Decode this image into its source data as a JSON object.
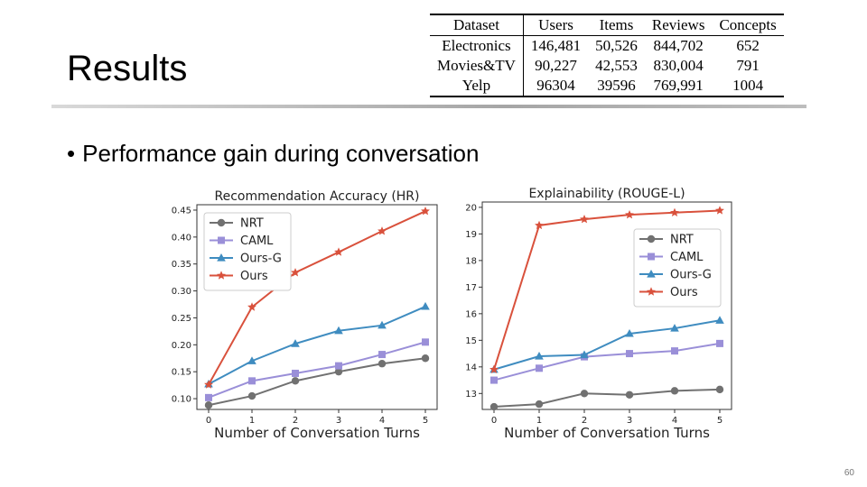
{
  "slide": {
    "title": "Results",
    "bullet_marker": "•",
    "bullet": "Performance gain during conversation",
    "page_number": "60"
  },
  "dataset_table": {
    "headers": [
      "Dataset",
      "Users",
      "Items",
      "Reviews",
      "Concepts"
    ],
    "rows": [
      [
        "Electronics",
        "146,481",
        "50,526",
        "844,702",
        "652"
      ],
      [
        "Movies&TV",
        "90,227",
        "42,553",
        "830,004",
        "791"
      ],
      [
        "Yelp",
        "96304",
        "39596",
        "769,991",
        "1004"
      ]
    ]
  },
  "colors": {
    "NRT": "#717171",
    "CAML": "#9a8fd8",
    "Ours-G": "#3f8cc0",
    "Ours": "#d9513c"
  },
  "chart_data": [
    {
      "type": "line",
      "title": "Recommendation Accuracy (HR)",
      "xlabel": "Number of Conversation Turns",
      "ylabel": "",
      "x": [
        0,
        1,
        2,
        3,
        4,
        5
      ],
      "ylim": [
        0.08,
        0.46
      ],
      "yticks": [
        0.1,
        0.15,
        0.2,
        0.25,
        0.3,
        0.35,
        0.4,
        0.45
      ],
      "legend_position": "top-left",
      "series": [
        {
          "name": "NRT",
          "marker": "circle",
          "values": [
            0.088,
            0.105,
            0.133,
            0.15,
            0.165,
            0.175
          ]
        },
        {
          "name": "CAML",
          "marker": "square",
          "values": [
            0.102,
            0.133,
            0.147,
            0.161,
            0.182,
            0.205
          ]
        },
        {
          "name": "Ours-G",
          "marker": "triangle",
          "values": [
            0.127,
            0.17,
            0.202,
            0.226,
            0.236,
            0.271
          ]
        },
        {
          "name": "Ours",
          "marker": "star",
          "values": [
            0.126,
            0.27,
            0.334,
            0.372,
            0.411,
            0.448
          ]
        }
      ]
    },
    {
      "type": "line",
      "title": "Explainability (ROUGE-L)",
      "xlabel": "Number of Conversation Turns",
      "ylabel": "",
      "x": [
        0,
        1,
        2,
        3,
        4,
        5
      ],
      "ylim": [
        12.4,
        20.2
      ],
      "yticks": [
        13,
        14,
        15,
        16,
        17,
        18,
        19,
        20
      ],
      "legend_position": "center-right",
      "series": [
        {
          "name": "NRT",
          "marker": "circle",
          "values": [
            12.5,
            12.6,
            13.0,
            12.95,
            13.1,
            13.15
          ]
        },
        {
          "name": "CAML",
          "marker": "square",
          "values": [
            13.5,
            13.95,
            14.38,
            14.5,
            14.6,
            14.88
          ]
        },
        {
          "name": "Ours-G",
          "marker": "triangle",
          "values": [
            13.9,
            14.4,
            14.45,
            15.25,
            15.45,
            15.75
          ]
        },
        {
          "name": "Ours",
          "marker": "star",
          "values": [
            13.9,
            19.32,
            19.55,
            19.72,
            19.8,
            19.88
          ]
        }
      ]
    }
  ]
}
